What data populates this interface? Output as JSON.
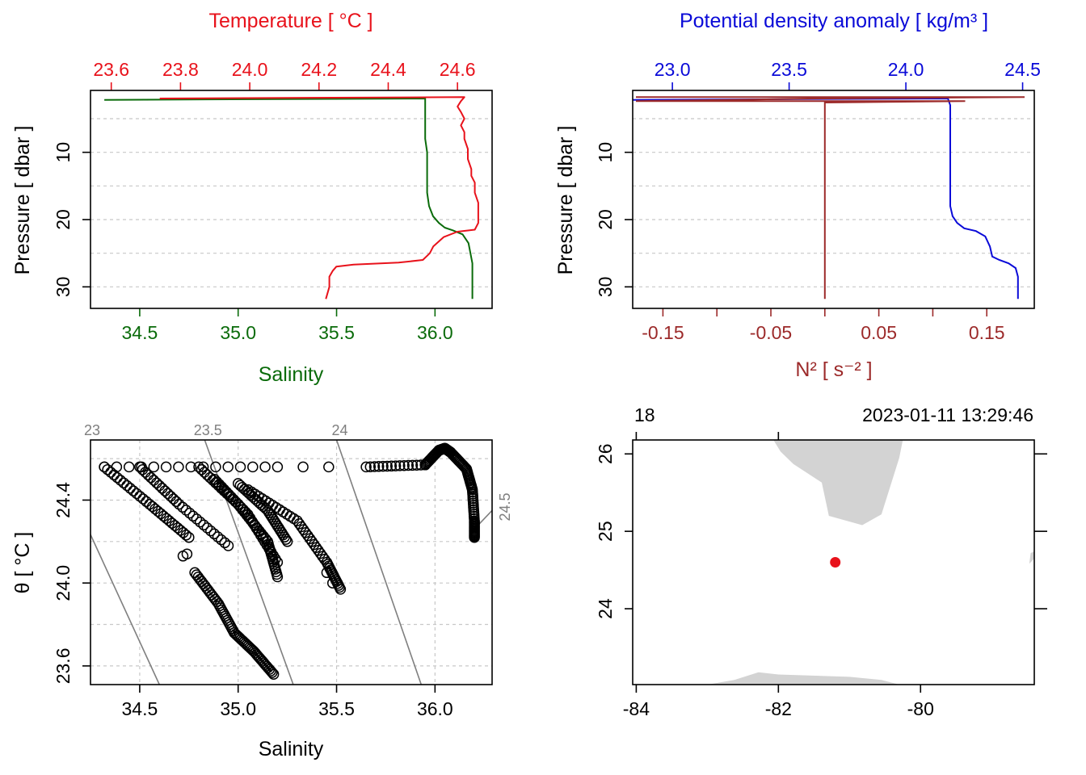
{
  "chart_data": [
    {
      "type": "line",
      "panel": "profile-temperature-salinity",
      "top_axis": {
        "title": "Temperature [ °C ]",
        "ticks": [
          "23.6",
          "23.8",
          "24.0",
          "24.2",
          "24.4",
          "24.6"
        ],
        "range": [
          23.54,
          24.7
        ],
        "color": "#e8121b"
      },
      "bottom_axis": {
        "title": "Salinity",
        "ticks": [
          "34.5",
          "35.0",
          "35.5",
          "36.0"
        ],
        "range": [
          34.25,
          36.29
        ],
        "color": "#0a6b0a"
      },
      "left_axis": {
        "title": "Pressure [ dbar ]",
        "ticks": [
          "10",
          "20",
          "30"
        ],
        "range": [
          33.2,
          0.8
        ],
        "reversed": true
      },
      "series": [
        {
          "name": "Temperature",
          "color": "#e8121b",
          "points": [
            [
              23.74,
              2.0
            ],
            [
              24.62,
              1.8
            ],
            [
              24.61,
              2.4
            ],
            [
              24.6,
              3.2
            ],
            [
              24.61,
              4.0
            ],
            [
              24.62,
              5.0
            ],
            [
              24.61,
              6.0
            ],
            [
              24.62,
              7.0
            ],
            [
              24.62,
              8.0
            ],
            [
              24.63,
              9.5
            ],
            [
              24.63,
              11.0
            ],
            [
              24.64,
              12.5
            ],
            [
              24.64,
              13.5
            ],
            [
              24.65,
              14.5
            ],
            [
              24.65,
              16.0
            ],
            [
              24.66,
              17.5
            ],
            [
              24.66,
              19.0
            ],
            [
              24.66,
              20.5
            ],
            [
              24.65,
              21.5
            ],
            [
              24.6,
              21.8
            ],
            [
              24.56,
              22.6
            ],
            [
              24.53,
              24.0
            ],
            [
              24.52,
              25.0
            ],
            [
              24.5,
              26.0
            ],
            [
              24.43,
              26.4
            ],
            [
              24.3,
              26.7
            ],
            [
              24.25,
              27.0
            ],
            [
              24.24,
              27.6
            ],
            [
              24.23,
              28.5
            ],
            [
              24.23,
              30.0
            ],
            [
              24.22,
              31.8
            ]
          ]
        },
        {
          "name": "Salinity",
          "color": "#0a6b0a",
          "points": [
            [
              34.32,
              2.2
            ],
            [
              35.95,
              2.0
            ],
            [
              35.95,
              2.5
            ],
            [
              35.95,
              4.0
            ],
            [
              35.95,
              6.0
            ],
            [
              35.95,
              8.0
            ],
            [
              35.96,
              10.0
            ],
            [
              35.96,
              12.0
            ],
            [
              35.96,
              14.0
            ],
            [
              35.96,
              16.0
            ],
            [
              35.97,
              18.0
            ],
            [
              35.99,
              19.5
            ],
            [
              36.02,
              20.5
            ],
            [
              36.05,
              21.2
            ],
            [
              36.09,
              21.6
            ],
            [
              36.14,
              22.2
            ],
            [
              36.17,
              23.5
            ],
            [
              36.18,
              25.0
            ],
            [
              36.19,
              26.5
            ],
            [
              36.19,
              28.0
            ],
            [
              36.19,
              30.0
            ],
            [
              36.19,
              31.8
            ]
          ]
        }
      ]
    },
    {
      "type": "line",
      "panel": "profile-density-n2",
      "top_axis": {
        "title": "Potential density anomaly [ kg/m³ ]",
        "ticks": [
          "23.0",
          "23.5",
          "24.0",
          "24.5"
        ],
        "range": [
          22.83,
          24.55
        ],
        "color": "#0a0ad8"
      },
      "bottom_axis": {
        "title": "N² [ s⁻² ]",
        "ticks": [
          "-0.15",
          "-0.05",
          "0.05",
          "0.15"
        ],
        "minor_ticks": [
          -0.1,
          0.0,
          0.1
        ],
        "range": [
          -0.178,
          0.194
        ],
        "color": "#9c2a2a"
      },
      "left_axis": {
        "title": "Pressure [ dbar ]",
        "ticks": [
          "10",
          "20",
          "30"
        ],
        "range": [
          33.2,
          0.8
        ],
        "reversed": true
      },
      "series": [
        {
          "name": "Potential density anomaly",
          "color": "#0a0ad8",
          "points": [
            [
              22.83,
              2.2
            ],
            [
              24.18,
              2.0
            ],
            [
              24.19,
              3.0
            ],
            [
              24.19,
              5.0
            ],
            [
              24.19,
              8.0
            ],
            [
              24.19,
              11.0
            ],
            [
              24.19,
              14.0
            ],
            [
              24.19,
              16.0
            ],
            [
              24.19,
              18.0
            ],
            [
              24.2,
              19.5
            ],
            [
              24.22,
              20.5
            ],
            [
              24.25,
              21.3
            ],
            [
              24.3,
              21.7
            ],
            [
              24.34,
              22.5
            ],
            [
              24.36,
              24.0
            ],
            [
              24.37,
              25.5
            ],
            [
              24.4,
              26.0
            ],
            [
              24.44,
              26.5
            ],
            [
              24.47,
              27.2
            ],
            [
              24.48,
              28.5
            ],
            [
              24.48,
              30.0
            ],
            [
              24.48,
              31.8
            ]
          ]
        },
        {
          "name": "N2",
          "color": "#9c2a2a",
          "points": [
            [
              -0.175,
              1.8
            ],
            [
              0.185,
              1.8
            ],
            [
              0.0,
              2.0
            ],
            [
              -0.175,
              2.4
            ],
            [
              0.13,
              2.4
            ],
            [
              0.0,
              2.6
            ],
            [
              0.0,
              5.0
            ],
            [
              0.0,
              10.0
            ],
            [
              0.0,
              15.0
            ],
            [
              0.0,
              20.0
            ],
            [
              0.0,
              25.0
            ],
            [
              0.0,
              26.5
            ],
            [
              0.0,
              30.0
            ],
            [
              0.0,
              31.8
            ]
          ]
        }
      ]
    },
    {
      "type": "scatter",
      "panel": "ts-diagram",
      "x_axis": {
        "title": "Salinity",
        "ticks": [
          "34.5",
          "35.0",
          "35.5",
          "36.0"
        ],
        "range": [
          34.25,
          36.29
        ]
      },
      "y_axis": {
        "title": "θ [ °C ]",
        "ticks": [
          "23.6",
          "24.0",
          "24.4"
        ],
        "range": [
          23.51,
          24.69
        ]
      },
      "isopycnals": [
        {
          "label": "23",
          "points": [
            [
              34.242,
              24.25
            ],
            [
              34.6,
              23.51
            ]
          ]
        },
        {
          "label": "23.5",
          "points": [
            [
              34.83,
              24.69
            ],
            [
              35.28,
              23.51
            ]
          ]
        },
        {
          "label": "24",
          "points": [
            [
              35.5,
              24.69
            ],
            [
              35.93,
              23.51
            ]
          ]
        },
        {
          "label": "24.5",
          "points": [
            [
              36.19,
              24.25
            ],
            [
              36.29,
              24.35
            ]
          ]
        }
      ],
      "isopycnal_color": "#7f7f7f",
      "segments": [
        [
          [
            34.32,
            24.56
          ],
          [
            35.2,
            24.56
          ]
        ],
        [
          [
            35.65,
            24.56
          ],
          [
            35.95,
            24.57
          ]
        ],
        [
          [
            35.95,
            24.57
          ],
          [
            36.02,
            24.64
          ],
          [
            36.05,
            24.65
          ],
          [
            36.08,
            24.63
          ]
        ],
        [
          [
            36.08,
            24.63
          ],
          [
            36.16,
            24.55
          ],
          [
            36.19,
            24.45
          ],
          [
            36.2,
            24.3
          ],
          [
            36.2,
            24.22
          ]
        ],
        [
          [
            34.32,
            24.56
          ],
          [
            34.55,
            24.38
          ],
          [
            34.75,
            24.22
          ]
        ],
        [
          [
            34.5,
            24.56
          ],
          [
            34.7,
            24.38
          ],
          [
            34.95,
            24.18
          ]
        ],
        [
          [
            34.8,
            24.56
          ],
          [
            35.0,
            24.38
          ],
          [
            35.15,
            24.2
          ],
          [
            35.2,
            24.03
          ]
        ],
        [
          [
            34.88,
            24.5
          ],
          [
            35.05,
            24.33
          ],
          [
            35.2,
            24.1
          ]
        ],
        [
          [
            35.0,
            24.48
          ],
          [
            35.15,
            24.35
          ],
          [
            35.25,
            24.2
          ]
        ],
        [
          [
            35.05,
            24.45
          ],
          [
            35.3,
            24.3
          ],
          [
            35.45,
            24.1
          ],
          [
            35.52,
            23.97
          ]
        ],
        [
          [
            34.78,
            24.05
          ],
          [
            34.9,
            23.9
          ],
          [
            34.98,
            23.76
          ],
          [
            35.08,
            23.67
          ],
          [
            35.18,
            23.56
          ]
        ]
      ],
      "singles": [
        [
          35.33,
          24.56
        ],
        [
          35.46,
          24.56
        ],
        [
          34.72,
          24.13
        ],
        [
          34.74,
          24.14
        ],
        [
          35.45,
          24.05
        ],
        [
          35.48,
          24.0
        ]
      ]
    },
    {
      "type": "map",
      "panel": "station-map",
      "x_axis": {
        "ticks": [
          "-84",
          "-82",
          "-80"
        ],
        "range": [
          -84.05,
          -78.4
        ]
      },
      "y_axis": {
        "ticks": [
          "24",
          "25",
          "26"
        ],
        "range": [
          23.02,
          26.18
        ]
      },
      "top_labels": {
        "left": "18",
        "right": "2023-01-11 13:29:46"
      },
      "station": {
        "lon": -81.2,
        "lat": 24.6,
        "color": "#e8121b"
      },
      "land_color": "#d3d3d3",
      "land": [
        [
          [
            -82.07,
            26.18
          ],
          [
            -81.97,
            26.03
          ],
          [
            -81.79,
            25.87
          ],
          [
            -81.39,
            25.63
          ],
          [
            -81.29,
            25.2
          ],
          [
            -80.82,
            25.08
          ],
          [
            -80.55,
            25.22
          ],
          [
            -80.3,
            25.95
          ],
          [
            -80.25,
            26.18
          ]
        ],
        [
          [
            -83.0,
            23.02
          ],
          [
            -82.62,
            23.08
          ],
          [
            -82.28,
            23.18
          ],
          [
            -82.0,
            23.15
          ],
          [
            -81.0,
            23.12
          ],
          [
            -80.55,
            23.08
          ],
          [
            -80.3,
            23.02
          ]
        ],
        [
          [
            -78.4,
            24.65
          ],
          [
            -78.47,
            24.58
          ],
          [
            -78.45,
            24.72
          ],
          [
            -78.4,
            24.74
          ]
        ]
      ]
    }
  ]
}
